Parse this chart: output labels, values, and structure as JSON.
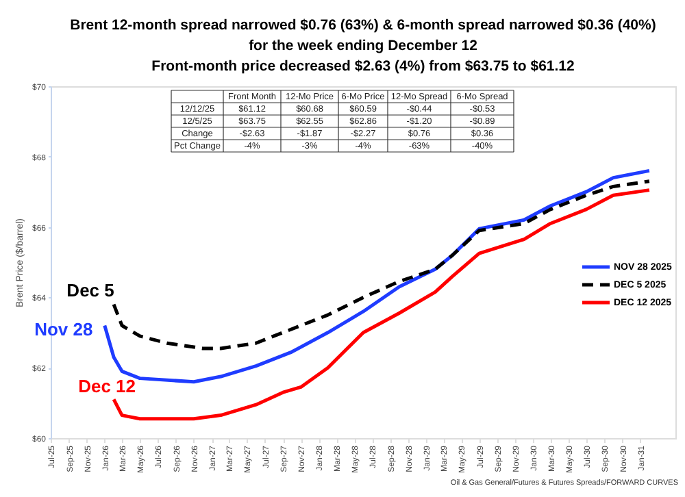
{
  "chart_data": {
    "type": "line",
    "title": [
      "Brent 12-month spread narrowed $0.76 (63%) & 6-month spread narrowed $0.36 (40%)",
      "for the week ending December 12",
      "Front-month price decreased $2.63 (4%) from $63.75 to $61.12"
    ],
    "ylabel": "Brent Price  ($/barrel)",
    "series": [
      {
        "name": "NOV 28 2025",
        "color": "#1f3cff",
        "line_style": "solid",
        "x": [
          "2026-01",
          "2026-02",
          "2026-03",
          "2026-05",
          "2026-11",
          "2027-02",
          "2027-06",
          "2027-10",
          "2028-02",
          "2028-06",
          "2028-10",
          "2029-02",
          "2029-04",
          "2029-07",
          "2029-12",
          "2030-03",
          "2030-07",
          "2030-10",
          "2031-02"
        ],
        "values": [
          63.2,
          62.3,
          61.9,
          61.7,
          61.6,
          61.75,
          62.05,
          62.45,
          63.0,
          63.6,
          64.3,
          64.8,
          65.2,
          65.95,
          66.2,
          66.6,
          67.0,
          67.4,
          67.6
        ]
      },
      {
        "name": "DEC 5 2025",
        "color": "#000000",
        "line_style": "dashed",
        "x": [
          "2026-02",
          "2026-03",
          "2026-05",
          "2026-08",
          "2026-12",
          "2027-02",
          "2027-06",
          "2027-07",
          "2027-11",
          "2028-02",
          "2028-06",
          "2028-10",
          "2029-02",
          "2029-04",
          "2029-07",
          "2029-12",
          "2030-03",
          "2030-07",
          "2030-10",
          "2031-02"
        ],
        "values": [
          63.8,
          63.2,
          62.9,
          62.7,
          62.55,
          62.55,
          62.7,
          62.8,
          63.2,
          63.5,
          64.0,
          64.45,
          64.8,
          65.2,
          65.9,
          66.1,
          66.5,
          66.9,
          67.15,
          67.3
        ]
      },
      {
        "name": "DEC 12 2025",
        "color": "#ff0000",
        "line_style": "solid",
        "x": [
          "2026-02",
          "2026-03",
          "2026-05",
          "2026-11",
          "2027-02",
          "2027-06",
          "2027-09",
          "2027-11",
          "2028-02",
          "2028-06",
          "2028-10",
          "2029-02",
          "2029-04",
          "2029-07",
          "2029-12",
          "2030-03",
          "2030-07",
          "2030-10",
          "2031-02"
        ],
        "values": [
          61.1,
          60.65,
          60.55,
          60.55,
          60.65,
          60.95,
          61.3,
          61.45,
          62.0,
          63.0,
          63.55,
          64.15,
          64.6,
          65.25,
          65.65,
          66.1,
          66.5,
          66.9,
          67.05
        ]
      }
    ],
    "ylim": [
      60,
      70
    ],
    "yticks": [
      {
        "value": 60,
        "label": "$60"
      },
      {
        "value": 62,
        "label": "$62"
      },
      {
        "value": 64,
        "label": "$64"
      },
      {
        "value": 66,
        "label": "$66"
      },
      {
        "value": 68,
        "label": "$68"
      },
      {
        "value": 70,
        "label": "$70"
      }
    ],
    "xlim": [
      "2025-07",
      "2031-05"
    ],
    "xticks": [
      {
        "value": "2025-07",
        "label": "Jul-25"
      },
      {
        "value": "2025-09",
        "label": "Sep-25"
      },
      {
        "value": "2025-11",
        "label": "Nov-25"
      },
      {
        "value": "2026-01",
        "label": "Jan-26"
      },
      {
        "value": "2026-03",
        "label": "Mar-26"
      },
      {
        "value": "2026-05",
        "label": "May-26"
      },
      {
        "value": "2026-07",
        "label": "Jul-26"
      },
      {
        "value": "2026-09",
        "label": "Sep-26"
      },
      {
        "value": "2026-11",
        "label": "Nov-26"
      },
      {
        "value": "2027-01",
        "label": "Jan-27"
      },
      {
        "value": "2027-03",
        "label": "Mar-27"
      },
      {
        "value": "2027-05",
        "label": "May-27"
      },
      {
        "value": "2027-07",
        "label": "Jul-27"
      },
      {
        "value": "2027-09",
        "label": "Sep-27"
      },
      {
        "value": "2027-11",
        "label": "Nov-27"
      },
      {
        "value": "2028-01",
        "label": "Jan-28"
      },
      {
        "value": "2028-03",
        "label": "Mar-28"
      },
      {
        "value": "2028-05",
        "label": "May-28"
      },
      {
        "value": "2028-07",
        "label": "Jul-28"
      },
      {
        "value": "2028-09",
        "label": "Sep-28"
      },
      {
        "value": "2028-11",
        "label": "Nov-28"
      },
      {
        "value": "2029-01",
        "label": "Jan-29"
      },
      {
        "value": "2029-03",
        "label": "Mar-29"
      },
      {
        "value": "2029-05",
        "label": "May-29"
      },
      {
        "value": "2029-07",
        "label": "Jul-29"
      },
      {
        "value": "2029-09",
        "label": "Sep-29"
      },
      {
        "value": "2029-11",
        "label": "Nov-29"
      },
      {
        "value": "2030-01",
        "label": "Jan-30"
      },
      {
        "value": "2030-03",
        "label": "Mar-30"
      },
      {
        "value": "2030-05",
        "label": "May-30"
      },
      {
        "value": "2030-07",
        "label": "Jul-30"
      },
      {
        "value": "2030-09",
        "label": "Sep-30"
      },
      {
        "value": "2030-11",
        "label": "Nov-30"
      },
      {
        "value": "2031-01",
        "label": "Jan-31"
      }
    ],
    "grid": false,
    "legend": "right",
    "annotations": [
      "Nov 28",
      "Dec 5",
      "Dec 12",
      "Front Month",
      "12-Mo Price",
      "6-Mo Price",
      "12-Mo Spread",
      "6-Mo Spread",
      "12/12/25",
      "$61.12",
      "$60.68",
      "$60.59",
      "-$0.44",
      "-$0.53",
      "12/5/25",
      "$63.75",
      "$62.55",
      "$62.86",
      "-$1.20",
      "-$0.89",
      "Change",
      "-$2.63",
      "-$1.87",
      "-$2.27",
      "$0.76",
      "$0.36",
      "Pct Change",
      "-4%",
      "-3%",
      "-4%",
      "-63%",
      "-40%",
      "Oil & Gas General/Futures & Futures Spreads/FORWARD CURVES"
    ]
  }
}
